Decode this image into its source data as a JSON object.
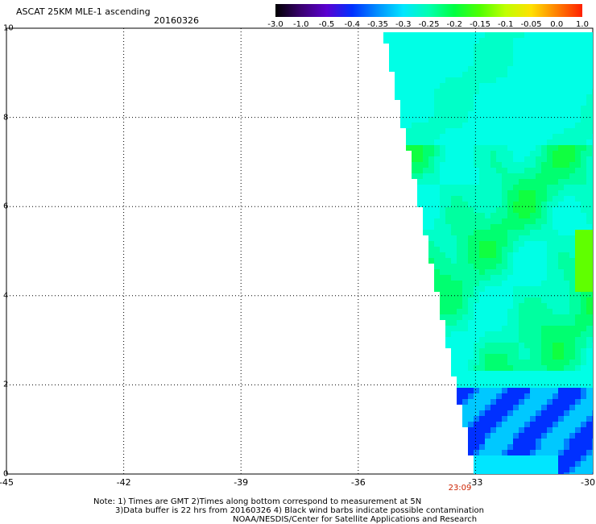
{
  "header": {
    "title": "ASCAT 25KM MLE-1 ascending",
    "date": "20160326"
  },
  "colorbar": {
    "labels": [
      "-3.0",
      "-1.0",
      "-0.5",
      "-0.4",
      "-0.35",
      "-0.3",
      "-0.25",
      "-0.2",
      "-0.15",
      "-0.1",
      "-0.05",
      "0.0",
      "1.0"
    ],
    "colors": [
      "#000000",
      "#3a0070",
      "#5a00d0",
      "#0030ff",
      "#0090ff",
      "#00e6ff",
      "#00ffb0",
      "#00ff40",
      "#50ff00",
      "#c0ff00",
      "#ffe000",
      "#ff8000",
      "#ff2000"
    ]
  },
  "map": {
    "y_labels": [
      "10",
      "8",
      "6",
      "4",
      "2",
      "0"
    ],
    "x_labels": [
      "-45",
      "-42",
      "-39",
      "-36",
      "-33",
      "-30"
    ],
    "time_label": "23:09",
    "lon_range": [
      -45,
      -30
    ],
    "lat_range": [
      0,
      10
    ]
  },
  "footer": {
    "line1": "Note: 1) Times are GMT 2)Times along bottom correspond to measurement at 5N",
    "line2": "3)Data buffer is 22 hrs from 20160326 4) Black wind barbs indicate possible contamination",
    "line3": "NOAA/NESDIS/Center for Satellite Applications and Research"
  }
}
